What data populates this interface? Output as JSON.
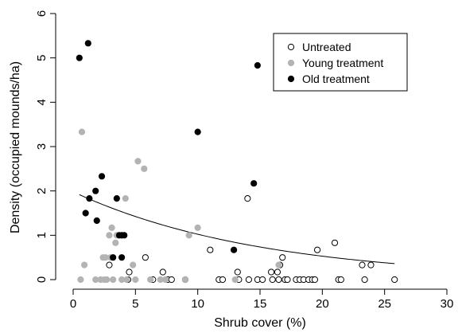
{
  "chart_data": {
    "type": "scatter",
    "xlabel": "Shrub cover (%)",
    "ylabel": "Density (occupied mounds/ha)",
    "xlim": [
      0,
      30
    ],
    "ylim": [
      0,
      6
    ],
    "x_ticks": [
      "0",
      "5",
      "10",
      "15",
      "20",
      "25",
      "30"
    ],
    "y_ticks": [
      "0",
      "1",
      "2",
      "3",
      "4",
      "5",
      "6"
    ],
    "grid": false,
    "legend_position": "top-right",
    "series": [
      {
        "name": "Untreated",
        "marker": "open-circle",
        "color": "#000000",
        "points": [
          [
            2.9,
            0.33
          ],
          [
            4.4,
            0.0
          ],
          [
            4.5,
            0.17
          ],
          [
            5.8,
            0.5
          ],
          [
            6.4,
            0.0
          ],
          [
            7.2,
            0.17
          ],
          [
            7.6,
            0.0
          ],
          [
            7.9,
            0.0
          ],
          [
            9.0,
            0.0
          ],
          [
            11.0,
            0.67
          ],
          [
            11.7,
            0.0
          ],
          [
            12.0,
            0.0
          ],
          [
            13.2,
            0.17
          ],
          [
            13.3,
            0.0
          ],
          [
            14.0,
            1.83
          ],
          [
            14.1,
            0.0
          ],
          [
            14.8,
            0.0
          ],
          [
            15.2,
            0.0
          ],
          [
            15.9,
            0.17
          ],
          [
            16.0,
            0.0
          ],
          [
            16.4,
            0.17
          ],
          [
            16.5,
            0.0
          ],
          [
            16.6,
            0.33
          ],
          [
            16.8,
            0.5
          ],
          [
            17.0,
            0.0
          ],
          [
            17.2,
            0.0
          ],
          [
            17.9,
            0.0
          ],
          [
            18.2,
            0.0
          ],
          [
            18.5,
            0.0
          ],
          [
            18.9,
            0.0
          ],
          [
            19.2,
            0.0
          ],
          [
            19.4,
            0.0
          ],
          [
            19.6,
            0.67
          ],
          [
            21.0,
            0.83
          ],
          [
            21.3,
            0.0
          ],
          [
            21.5,
            0.0
          ],
          [
            23.2,
            0.33
          ],
          [
            23.4,
            0.0
          ],
          [
            23.9,
            0.33
          ],
          [
            25.8,
            0.0
          ]
        ]
      },
      {
        "name": "Young treatment",
        "marker": "filled-circle",
        "color": "#b3b3b3",
        "points": [
          [
            0.6,
            0.0
          ],
          [
            0.7,
            3.33
          ],
          [
            0.9,
            0.33
          ],
          [
            1.8,
            0.0
          ],
          [
            2.2,
            0.0
          ],
          [
            2.4,
            0.5
          ],
          [
            2.5,
            0.0
          ],
          [
            2.6,
            0.5
          ],
          [
            2.7,
            0.0
          ],
          [
            2.9,
            1.0
          ],
          [
            3.0,
            0.5
          ],
          [
            3.1,
            1.17
          ],
          [
            3.2,
            0.0
          ],
          [
            3.4,
            0.83
          ],
          [
            3.5,
            1.0
          ],
          [
            3.9,
            0.0
          ],
          [
            4.2,
            1.83
          ],
          [
            4.3,
            0.0
          ],
          [
            4.8,
            0.33
          ],
          [
            5.0,
            0.0
          ],
          [
            5.2,
            2.67
          ],
          [
            5.7,
            2.5
          ],
          [
            6.2,
            0.0
          ],
          [
            7.0,
            0.0
          ],
          [
            7.4,
            0.0
          ],
          [
            9.0,
            0.0
          ],
          [
            9.3,
            1.0
          ],
          [
            10.0,
            1.17
          ],
          [
            13.0,
            0.0
          ],
          [
            16.5,
            0.33
          ]
        ]
      },
      {
        "name": "Old treatment",
        "marker": "filled-circle",
        "color": "#000000",
        "points": [
          [
            0.5,
            5.0
          ],
          [
            1.0,
            1.5
          ],
          [
            1.2,
            5.33
          ],
          [
            1.3,
            1.83
          ],
          [
            1.8,
            2.0
          ],
          [
            1.9,
            1.33
          ],
          [
            2.3,
            2.33
          ],
          [
            3.2,
            0.5
          ],
          [
            3.5,
            1.83
          ],
          [
            3.7,
            1.0
          ],
          [
            3.9,
            0.5
          ],
          [
            3.9,
            1.0
          ],
          [
            4.1,
            1.0
          ],
          [
            10.0,
            3.33
          ],
          [
            12.9,
            0.67
          ],
          [
            14.5,
            2.17
          ],
          [
            14.8,
            4.83
          ]
        ]
      }
    ],
    "fitted_curve": {
      "form": "exponential",
      "a": 1.98,
      "b": -0.066,
      "x_range": [
        0.5,
        25.8
      ],
      "color": "#000000"
    }
  }
}
